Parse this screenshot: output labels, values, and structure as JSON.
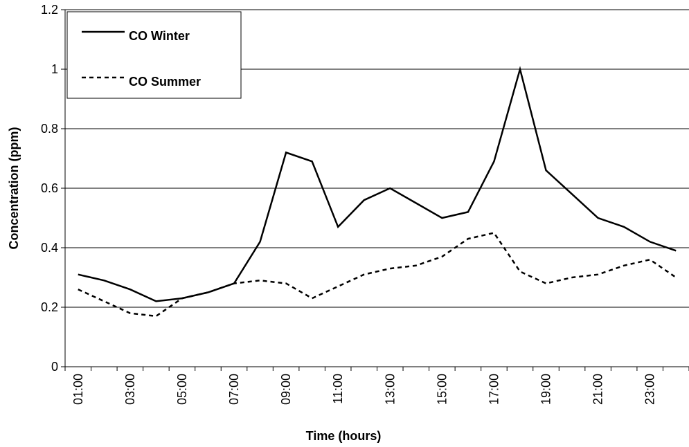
{
  "chart_data": {
    "type": "line",
    "x_label": "Time (hours)",
    "y_label": "Concentration (ppm)",
    "categories": [
      "01:00",
      null,
      "03:00",
      null,
      "05:00",
      null,
      "07:00",
      null,
      "09:00",
      null,
      "11:00",
      null,
      "13:00",
      null,
      "15:00",
      null,
      "17:00",
      null,
      "19:00",
      null,
      "21:00",
      null,
      "23:00",
      null
    ],
    "series": [
      {
        "name": "CO Winter",
        "color": "#000000",
        "dashed": false,
        "values": [
          0.31,
          0.29,
          0.26,
          0.22,
          0.23,
          0.25,
          0.28,
          0.42,
          0.72,
          0.69,
          0.47,
          0.56,
          0.6,
          0.55,
          0.5,
          0.52,
          0.69,
          1.0,
          0.66,
          0.58,
          0.5,
          0.47,
          0.42,
          0.39
        ]
      },
      {
        "name": "CO Summer",
        "color": "#000000",
        "dashed": true,
        "values": [
          0.26,
          0.22,
          0.18,
          0.17,
          0.23,
          0.25,
          0.28,
          0.29,
          0.28,
          0.23,
          0.27,
          0.31,
          0.33,
          0.34,
          0.37,
          0.43,
          0.45,
          0.32,
          0.28,
          0.3,
          0.31,
          0.34,
          0.36,
          0.3
        ]
      }
    ],
    "ylim": [
      0,
      1.2
    ],
    "yticks": [
      0,
      0.2,
      0.4,
      0.6,
      0.8,
      1,
      1.2
    ],
    "grid": true,
    "legend": "upper left"
  }
}
